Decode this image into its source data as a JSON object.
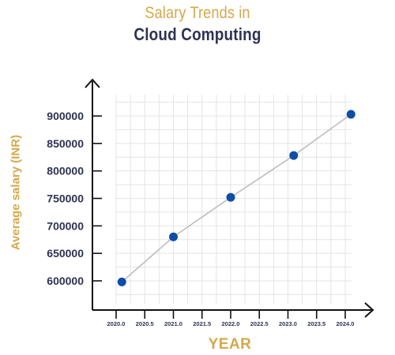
{
  "colors": {
    "accent": "#D4A84B",
    "title_dark": "#2E3352",
    "point": "#0D4EA6",
    "line": "#BDBDBD",
    "grid": "#E4E4E4",
    "axis": "#111111",
    "tick_text": "#2E3352"
  },
  "chart_data": {
    "type": "line",
    "title": "Salary Trends in",
    "subtitle": "Cloud Computing",
    "xlabel": "YEAR",
    "ylabel": "Average salary (INR)",
    "x_ticks": [
      "2020.0",
      "2020.5",
      "2021.0",
      "2021.5",
      "2022.0",
      "2022.5",
      "2023.0",
      "2023.5",
      "2024.0"
    ],
    "y_ticks": [
      "600000",
      "650000",
      "700000",
      "750000",
      "800000",
      "850000",
      "900000"
    ],
    "xlim": [
      2019.5,
      2024.2
    ],
    "ylim": [
      545000,
      960000
    ],
    "grid": true,
    "legend": "none",
    "series": [
      {
        "x": [
          2020.1,
          2021.0,
          2022.0,
          2023.1,
          2024.1
        ],
        "y": [
          598000,
          680000,
          752000,
          828000,
          903000
        ]
      }
    ]
  }
}
